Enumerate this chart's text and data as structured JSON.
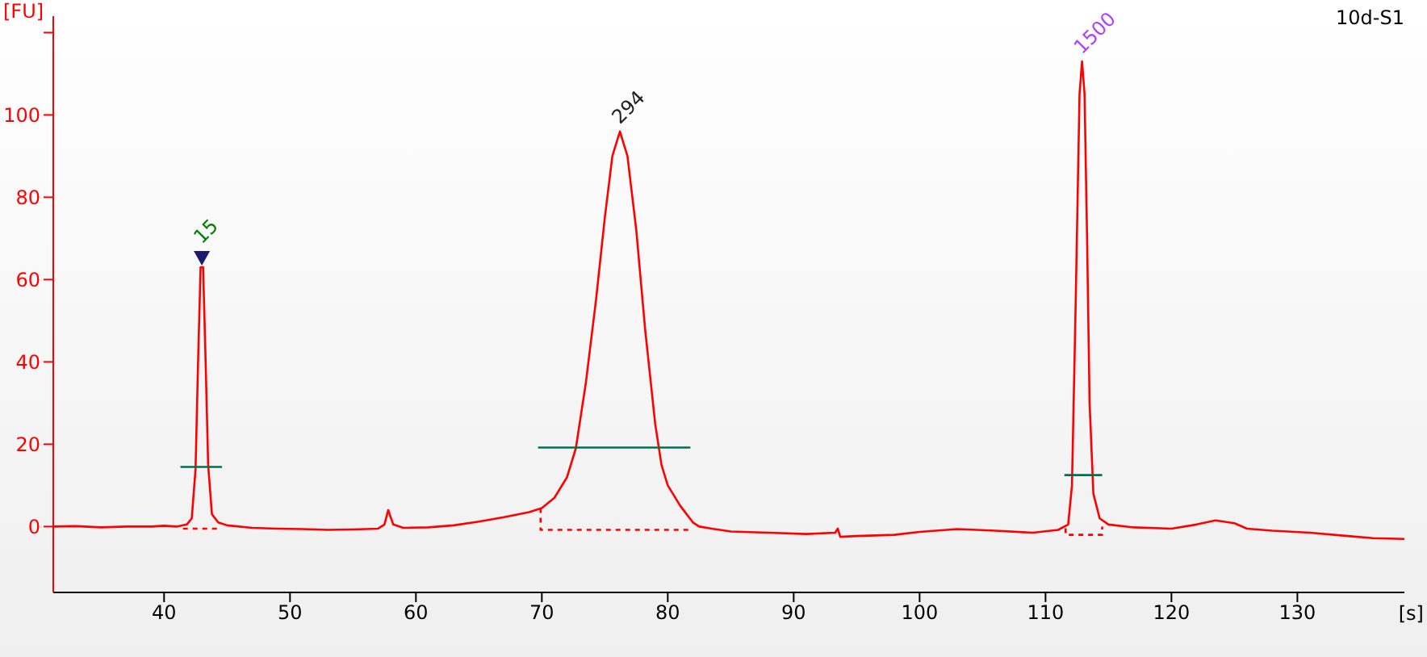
{
  "chart_data": {
    "type": "line",
    "title": "10d-S1",
    "xlabel": "[s]",
    "ylabel": "[FU]",
    "xlim": [
      31.2,
      138.5
    ],
    "ylim": [
      -16,
      124
    ],
    "xticks": [
      40,
      50,
      60,
      70,
      80,
      90,
      100,
      110,
      120,
      130
    ],
    "yticks": [
      0,
      20,
      40,
      60,
      80,
      100,
      {
        "value": 120,
        "label": null
      }
    ],
    "marker": "none",
    "line_style": "solid",
    "series": [
      {
        "color": "#ff0000",
        "x": [
          31.2,
          33,
          35,
          37,
          39,
          40,
          41,
          41.8,
          42.2,
          42.5,
          42.7,
          42.9,
          43.1,
          43.3,
          43.5,
          43.8,
          44.3,
          45,
          47,
          49,
          51,
          53,
          55,
          57,
          57.5,
          57.8,
          58.2,
          59,
          61,
          63,
          65,
          67,
          69,
          70,
          71,
          72,
          72.7,
          73.5,
          74.3,
          75,
          75.6,
          76.2,
          76.8,
          77.5,
          78.2,
          79,
          79.5,
          80,
          81,
          82,
          82.5,
          83.5,
          85,
          88,
          91,
          93.3,
          93.5,
          93.7,
          95,
          98,
          100,
          103,
          106,
          109,
          111,
          111.8,
          112.1,
          112.4,
          112.7,
          112.9,
          113.1,
          113.3,
          113.5,
          113.8,
          114.3,
          115,
          117,
          120,
          122,
          123.5,
          125,
          126,
          128,
          131,
          134,
          136,
          138.5
        ],
        "values": [
          0,
          0.1,
          -0.2,
          0,
          0,
          0.2,
          0,
          0.5,
          2,
          14,
          40,
          63,
          63,
          40,
          15,
          3,
          1,
          0.3,
          -0.3,
          -0.5,
          -0.6,
          -0.8,
          -0.7,
          -0.5,
          0.5,
          4,
          0.5,
          -0.3,
          -0.2,
          0.3,
          1.2,
          2.3,
          3.5,
          4.5,
          7,
          12,
          19,
          35,
          55,
          75,
          90,
          96,
          90,
          72,
          48,
          25,
          15,
          10,
          5,
          1,
          0,
          -0.5,
          -1.2,
          -1.5,
          -1.8,
          -1.5,
          -0.5,
          -2.5,
          -2.3,
          -2,
          -1.3,
          -0.6,
          -1,
          -1.5,
          -0.8,
          0.5,
          10,
          55,
          105,
          113,
          105,
          70,
          30,
          8,
          2,
          0.5,
          -0.2,
          -0.5,
          0.5,
          1.5,
          0.8,
          -0.5,
          -1,
          -1.5,
          -2.3,
          -2.8,
          -3
        ]
      },
      {
        "color": "#007050",
        "x": [
          41.3,
          44.6
        ],
        "values": [
          14.5,
          14.5
        ]
      },
      {
        "color": "#007050",
        "x": [
          69.7,
          81.8
        ],
        "values": [
          19.2,
          19.2
        ]
      },
      {
        "color": "#007050",
        "x": [
          111.5,
          114.5
        ],
        "values": [
          12.5,
          12.5
        ]
      },
      {
        "color": "#ff0000",
        "line_style": "dashed",
        "x": [
          41.5,
          44.5
        ],
        "values": [
          -0.5,
          -0.5
        ]
      },
      {
        "color": "#ff0000",
        "line_style": "dashed",
        "x": [
          69.9,
          69.9,
          82
        ],
        "values": [
          4.5,
          -0.8,
          -0.8
        ]
      },
      {
        "color": "#ff0000",
        "line_style": "dashed",
        "x": [
          111.6,
          111.6,
          114.5,
          114.5
        ],
        "values": [
          -0.4,
          -2,
          -2,
          0
        ]
      }
    ],
    "annotations": [
      {
        "text": "15",
        "x": 43,
        "y": 63
      },
      {
        "text": "294",
        "x": 76.2,
        "y": 96
      },
      {
        "text": "1500",
        "x": 112.9,
        "y": 113
      }
    ]
  }
}
